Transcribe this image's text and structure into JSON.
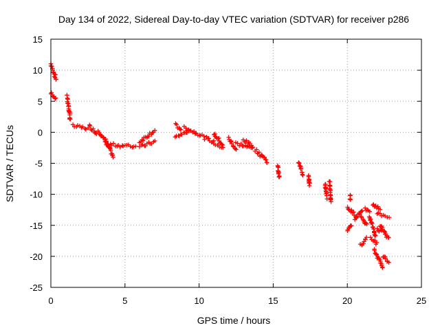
{
  "chart_data": {
    "type": "scatter",
    "title": "Day 134 of 2022, Sidereal Day-to-day VTEC variation (SDTVAR) for receiver p286",
    "xlabel": "GPS time / hours",
    "ylabel": "SDTVAR / TECUs",
    "xlim": [
      0,
      25
    ],
    "ylim": [
      -25,
      15
    ],
    "xticks": [
      0,
      5,
      10,
      15,
      20,
      25
    ],
    "yticks": [
      15,
      10,
      5,
      0,
      -5,
      -10,
      -15,
      -20,
      -25
    ],
    "grid": true,
    "marker": "plus",
    "color": "#ff0000",
    "series": [
      {
        "name": "SDTVAR",
        "segments": [
          [
            0.0,
            11.0,
            0.35,
            8.5
          ],
          [
            0.0,
            6.3,
            0.35,
            5.3
          ],
          [
            1.1,
            5.8,
            1.3,
            2.0
          ],
          [
            1.5,
            1.0,
            2.5,
            0.6
          ],
          [
            2.6,
            1.0,
            3.1,
            -0.2
          ],
          [
            3.2,
            0.3,
            3.9,
            -2.3
          ],
          [
            3.7,
            -1.3,
            4.2,
            -4.0
          ],
          [
            4.0,
            -2.0,
            5.7,
            -2.3
          ],
          [
            6.0,
            -1.5,
            7.0,
            0.3
          ],
          [
            6.0,
            -2.4,
            7.0,
            -1.5
          ],
          [
            8.4,
            -0.8,
            9.3,
            0.2
          ],
          [
            8.4,
            1.2,
            8.8,
            0.5
          ],
          [
            9.0,
            0.7,
            10.2,
            -0.5
          ],
          [
            10.3,
            -0.8,
            11.0,
            -1.6
          ],
          [
            11.0,
            -0.2,
            11.6,
            -2.0
          ],
          [
            11.0,
            -2.0,
            11.6,
            -2.4
          ],
          [
            12.0,
            -1.0,
            12.5,
            -2.8
          ],
          [
            12.5,
            -1.8,
            13.6,
            -2.6
          ],
          [
            13.0,
            -1.2,
            13.6,
            -2.2
          ],
          [
            13.8,
            -2.8,
            14.2,
            -3.8
          ],
          [
            14.2,
            -3.5,
            14.6,
            -4.8
          ],
          [
            15.3,
            -5.5,
            15.4,
            -7.3
          ],
          [
            16.7,
            -4.8,
            17.0,
            -6.8
          ],
          [
            17.4,
            -6.8,
            17.45,
            -8.6
          ],
          [
            18.5,
            -8.2,
            18.6,
            -10.5
          ],
          [
            18.8,
            -8.0,
            18.9,
            -11.2
          ],
          [
            20.0,
            -12.0,
            20.6,
            -13.5
          ],
          [
            20.2,
            -10.0,
            20.2,
            -11.0
          ],
          [
            20.0,
            -16.0,
            20.3,
            -15.0
          ],
          [
            20.5,
            -14.0,
            21.0,
            -12.5
          ],
          [
            20.9,
            -13.5,
            21.3,
            -15.0
          ],
          [
            20.9,
            -18.2,
            21.3,
            -17.0
          ],
          [
            21.2,
            -12.2,
            21.5,
            -12.8
          ],
          [
            21.5,
            -13.5,
            21.9,
            -16.8
          ],
          [
            21.7,
            -11.5,
            22.2,
            -12.5
          ],
          [
            21.6,
            -17.0,
            22.0,
            -18.0
          ],
          [
            21.8,
            -19.0,
            22.4,
            -21.8
          ],
          [
            22.0,
            -13.2,
            22.8,
            -13.5
          ],
          [
            22.2,
            -15.0,
            22.8,
            -17.2
          ],
          [
            22.4,
            -20.0,
            22.8,
            -21.0
          ],
          [
            22.0,
            -15.5,
            22.3,
            -16.0
          ]
        ]
      }
    ]
  }
}
